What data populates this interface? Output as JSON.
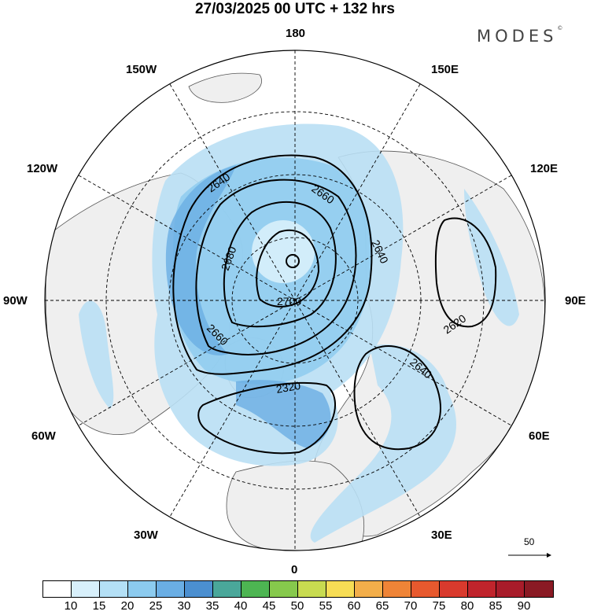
{
  "title": "27/03/2025  00 UTC  + 132 hrs",
  "logo": "MODES",
  "logo_mark": "©",
  "longitude_labels": {
    "top": "180",
    "bottom": "0",
    "left": "90W",
    "right": "90E",
    "nw": "150W",
    "ne": "150E",
    "wnw": "120W",
    "ene": "120E",
    "wsw": "60W",
    "ese": "60E",
    "sw": "30W",
    "se": "30E"
  },
  "contour_labels": [
    "2640",
    "2660",
    "2680",
    "2700",
    "2640",
    "2660",
    "2620",
    "2640",
    "2320"
  ],
  "reference_vector": "50",
  "colorbar": {
    "labels": [
      "10",
      "15",
      "20",
      "25",
      "30",
      "35",
      "40",
      "45",
      "50",
      "55",
      "60",
      "65",
      "70",
      "75",
      "80",
      "85",
      "90"
    ],
    "colors": [
      "#ffffff",
      "#d8f0fb",
      "#b4e0f6",
      "#8ccbef",
      "#6aaee4",
      "#4b8fd0",
      "#4aa79a",
      "#4db552",
      "#86c94c",
      "#c8db50",
      "#f7dd55",
      "#f3ae4a",
      "#ef8437",
      "#e7592e",
      "#d93a2d",
      "#c0242c",
      "#a81c2a",
      "#8a1a24"
    ]
  },
  "colors": {
    "land": "#efefef",
    "coast": "#555555",
    "contour": "#000000",
    "wind_light": "#b9dff4",
    "wind_mid": "#8ecbee",
    "wind_strong": "#6aaee4"
  }
}
